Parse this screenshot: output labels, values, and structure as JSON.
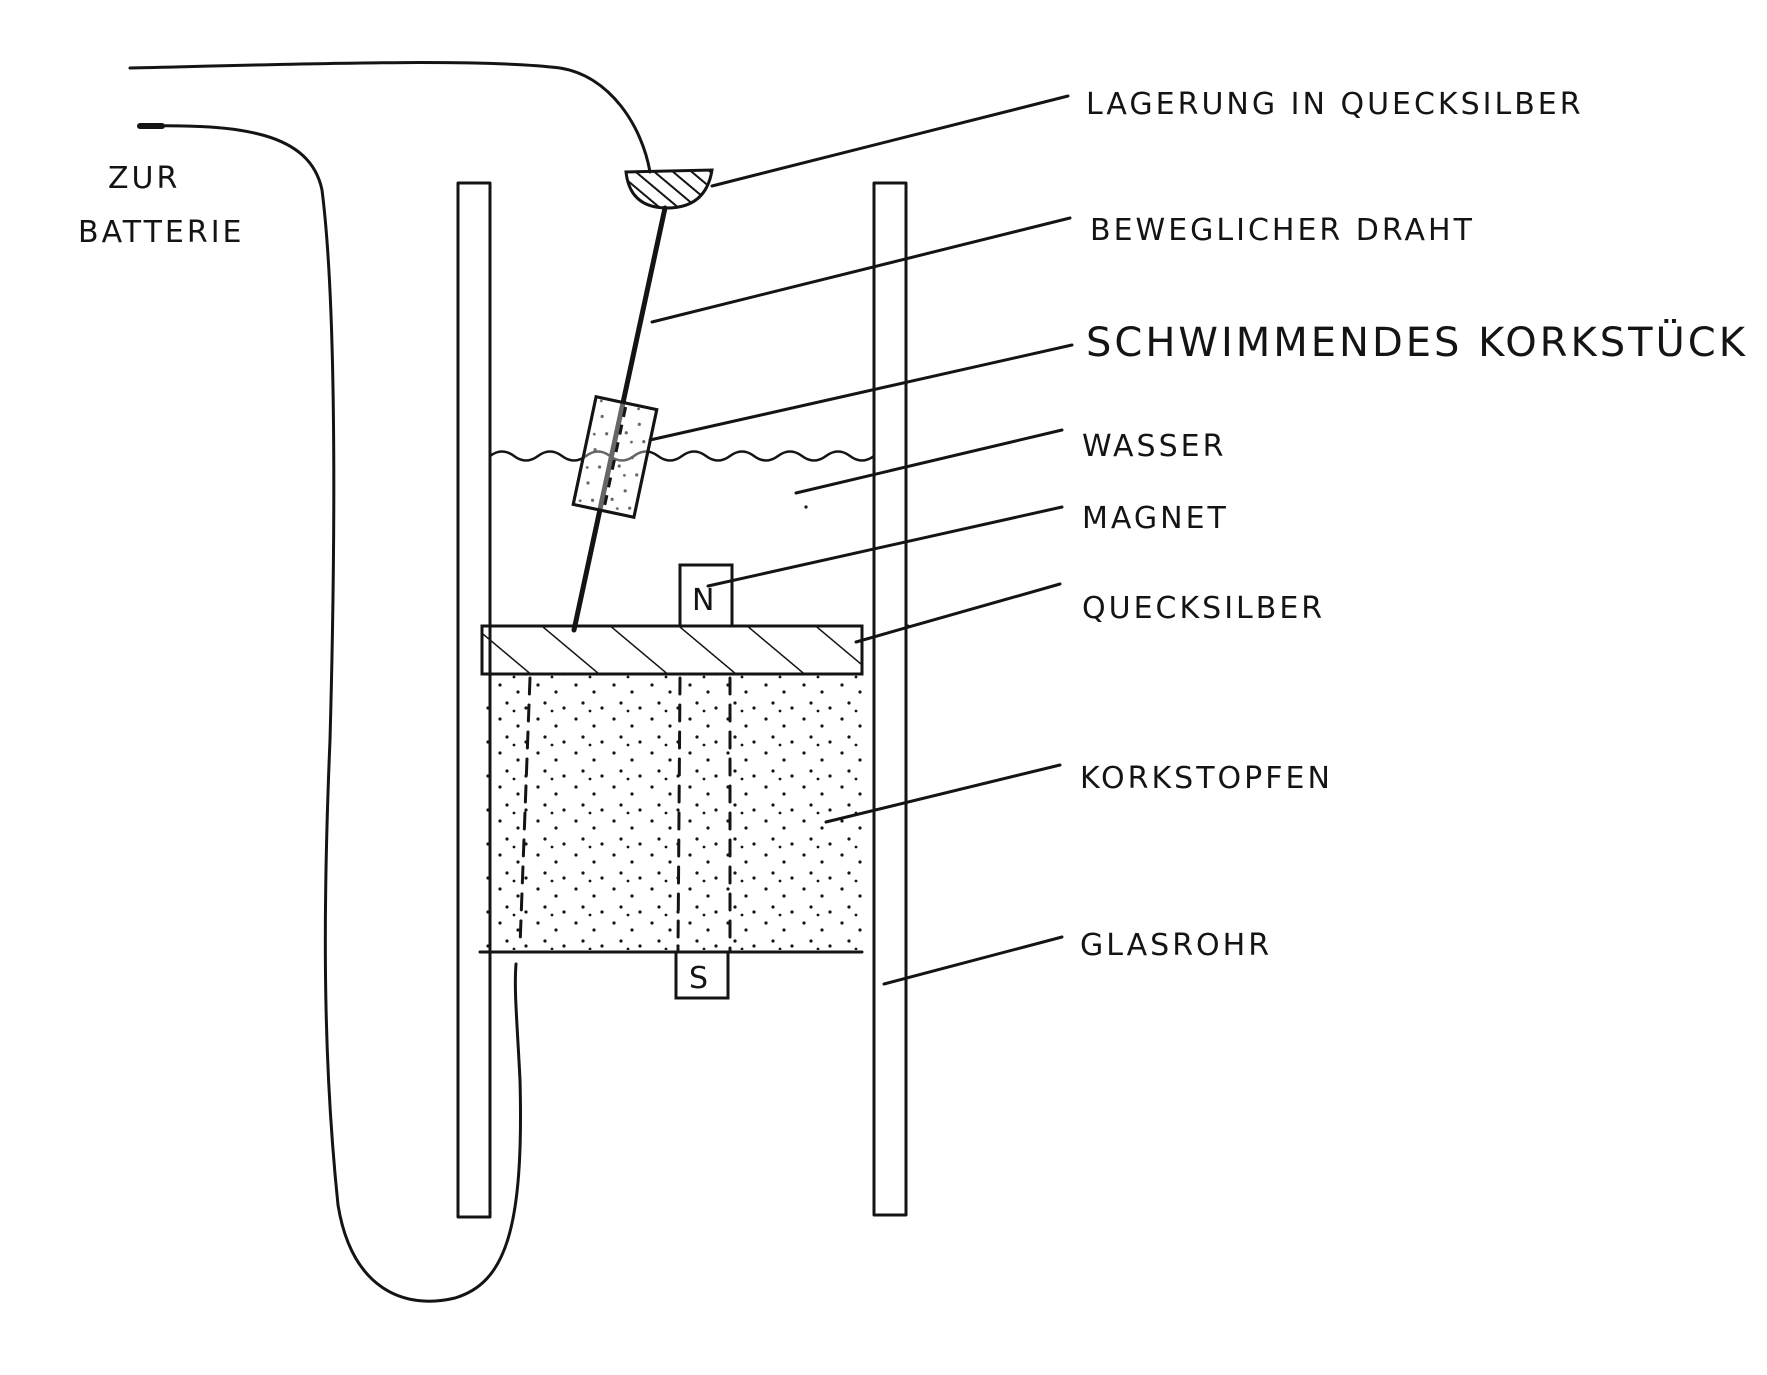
{
  "labels": {
    "battery_line1": "ZUR",
    "battery_line2": "BATTERIE",
    "mercury_bearing": "LAGERUNG IN QUECKSILBER",
    "movable_wire": "BEWEGLICHER DRAHT",
    "floating_cork": "SCHWIMMENDES KORKSTÜCK",
    "water": "WASSER",
    "magnet": "MAGNET",
    "mercury": "QUECKSILBER",
    "cork_stopper": "KORKSTOPFEN",
    "glass_tube": "GLASROHR"
  },
  "magnet_poles": {
    "north": "N",
    "south": "S"
  }
}
